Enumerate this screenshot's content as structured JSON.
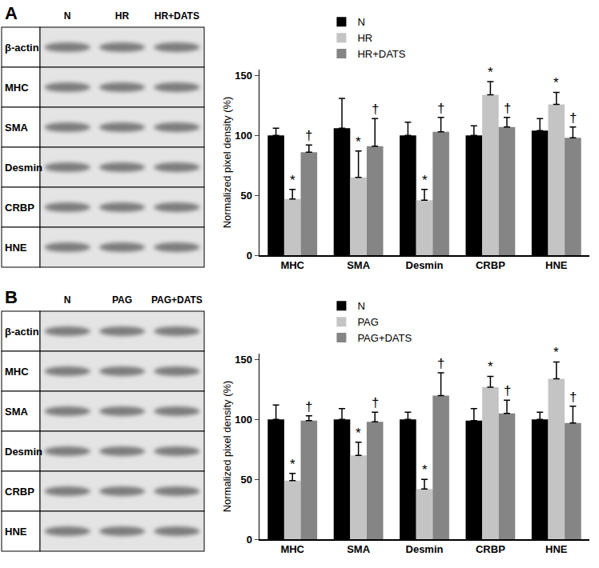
{
  "panels": [
    {
      "label": "A",
      "lanes": [
        "N",
        "HR",
        "HR+DATS"
      ],
      "rows": [
        "β-actin",
        "MHC",
        "SMA",
        "Desmin",
        "CRBP",
        "HNE"
      ]
    },
    {
      "label": "B",
      "lanes": [
        "N",
        "PAG",
        "PAG+DATS"
      ],
      "rows": [
        "β-actin",
        "MHC",
        "SMA",
        "Desmin",
        "CRBP",
        "HNE"
      ]
    }
  ],
  "chart_data": [
    {
      "type": "bar",
      "categories": [
        "MHC",
        "SMA",
        "Desmin",
        "CRBP",
        "HNE"
      ],
      "y_label": "Normalized pixel density (%)",
      "ylim": [
        0,
        155
      ],
      "yticks": [
        0,
        50,
        100,
        150
      ],
      "legend": "top",
      "series": [
        {
          "name": "N",
          "color": "#000000",
          "values": [
            100,
            106,
            100,
            100,
            104
          ],
          "errors": [
            6,
            25,
            11,
            8,
            10
          ]
        },
        {
          "name": "HR",
          "color": "#c4c4c4",
          "values": [
            47,
            65,
            46,
            134,
            126
          ],
          "errors": [
            8,
            22,
            9,
            11,
            10
          ],
          "significance": [
            "*",
            "*",
            "*",
            "*",
            "*"
          ]
        },
        {
          "name": "HR+DATS",
          "color": "#858585",
          "values": [
            86,
            91,
            103,
            107,
            98
          ],
          "errors": [
            6,
            23,
            12,
            8,
            9
          ],
          "significance": [
            "†",
            "†",
            "†",
            "†",
            "†"
          ]
        }
      ]
    },
    {
      "type": "bar",
      "categories": [
        "MHC",
        "SMA",
        "Desmin",
        "CRBP",
        "HNE"
      ],
      "y_label": "Normalized pixel density (%)",
      "ylim": [
        0,
        155
      ],
      "yticks": [
        0,
        50,
        100,
        150
      ],
      "legend": "top",
      "series": [
        {
          "name": "N",
          "color": "#000000",
          "values": [
            100,
            100,
            100,
            99,
            100
          ],
          "errors": [
            12,
            9,
            6,
            10,
            6
          ]
        },
        {
          "name": "PAG",
          "color": "#c4c4c4",
          "values": [
            49,
            70,
            42,
            127,
            134
          ],
          "errors": [
            6,
            11,
            8,
            9,
            14
          ],
          "significance": [
            "*",
            "*",
            "*",
            "*",
            "*"
          ]
        },
        {
          "name": "PAG+DATS",
          "color": "#858585",
          "values": [
            99,
            98,
            120,
            105,
            97
          ],
          "errors": [
            4,
            8,
            19,
            11,
            14
          ],
          "significance": [
            "†",
            "†",
            "†",
            "†",
            "†"
          ]
        }
      ]
    }
  ]
}
